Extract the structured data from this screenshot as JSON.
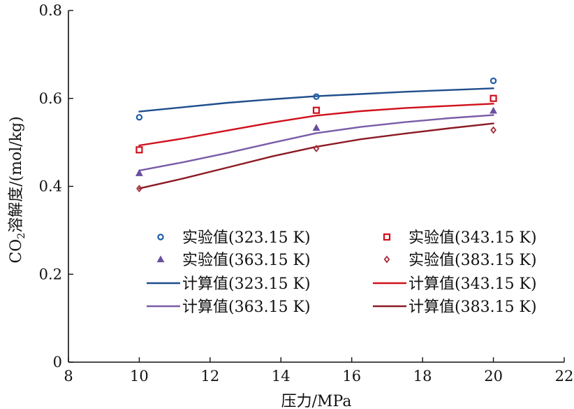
{
  "chart_data": {
    "type": "line",
    "xlabel": "压力/MPa",
    "ylabel_parts": [
      "CO",
      "2",
      "溶解度/(mol/kg)"
    ],
    "xlim": [
      8,
      22
    ],
    "ylim": [
      0,
      0.8
    ],
    "xticks": [
      8,
      10,
      12,
      14,
      16,
      18,
      20,
      22
    ],
    "yticks": [
      0,
      0.2,
      0.4,
      0.6,
      0.8
    ],
    "xtick_labels": [
      "8",
      "10",
      "12",
      "14",
      "16",
      "18",
      "20",
      "22"
    ],
    "ytick_labels": [
      "0",
      "0.2",
      "0.4",
      "0.6",
      "0.8"
    ],
    "grid": false,
    "legend_position": "lower-center",
    "series": [
      {
        "name": "实验值(323.15 K)",
        "kind": "scatter",
        "marker": "circle",
        "color": "#1f5ea8",
        "x": [
          10,
          15,
          20
        ],
        "y": [
          0.557,
          0.604,
          0.64
        ]
      },
      {
        "name": "实验值(343.15 K)",
        "kind": "scatter",
        "marker": "square",
        "color": "#d0101c",
        "x": [
          10,
          15,
          20
        ],
        "y": [
          0.483,
          0.573,
          0.6
        ]
      },
      {
        "name": "实验值(363.15 K)",
        "kind": "scatter",
        "marker": "triangle",
        "color": "#6b4fa0",
        "x": [
          10,
          15,
          20
        ],
        "y": [
          0.43,
          0.533,
          0.572
        ]
      },
      {
        "name": "实验值(383.15 K)",
        "kind": "scatter",
        "marker": "diamond",
        "color": "#a32a37",
        "x": [
          10,
          15,
          20
        ],
        "y": [
          0.395,
          0.486,
          0.528
        ]
      },
      {
        "name": "计算值(323.15 K)",
        "kind": "line",
        "color": "#1f4e8c",
        "x": [
          10,
          11.25,
          12.5,
          13.75,
          15,
          16.25,
          17.5,
          18.75,
          20
        ],
        "y": [
          0.57,
          0.58,
          0.59,
          0.598,
          0.605,
          0.61,
          0.615,
          0.619,
          0.623
        ]
      },
      {
        "name": "计算值(343.15 K)",
        "kind": "line",
        "color": "#d0101c",
        "x": [
          10,
          11.25,
          12.5,
          13.75,
          15,
          16.25,
          17.5,
          18.75,
          20
        ],
        "y": [
          0.493,
          0.509,
          0.527,
          0.545,
          0.561,
          0.571,
          0.578,
          0.583,
          0.588
        ]
      },
      {
        "name": "计算值(363.15 K)",
        "kind": "line",
        "color": "#7a5ca8",
        "x": [
          10,
          11.25,
          12.5,
          13.75,
          15,
          16.25,
          17.5,
          18.75,
          20
        ],
        "y": [
          0.436,
          0.455,
          0.476,
          0.499,
          0.521,
          0.535,
          0.546,
          0.555,
          0.562
        ]
      },
      {
        "name": "计算值(383.15 K)",
        "kind": "line",
        "color": "#8c1a24",
        "x": [
          10,
          11.25,
          12.5,
          13.75,
          15,
          16.25,
          17.5,
          18.75,
          20
        ],
        "y": [
          0.395,
          0.418,
          0.443,
          0.468,
          0.49,
          0.507,
          0.52,
          0.532,
          0.543
        ]
      }
    ]
  }
}
